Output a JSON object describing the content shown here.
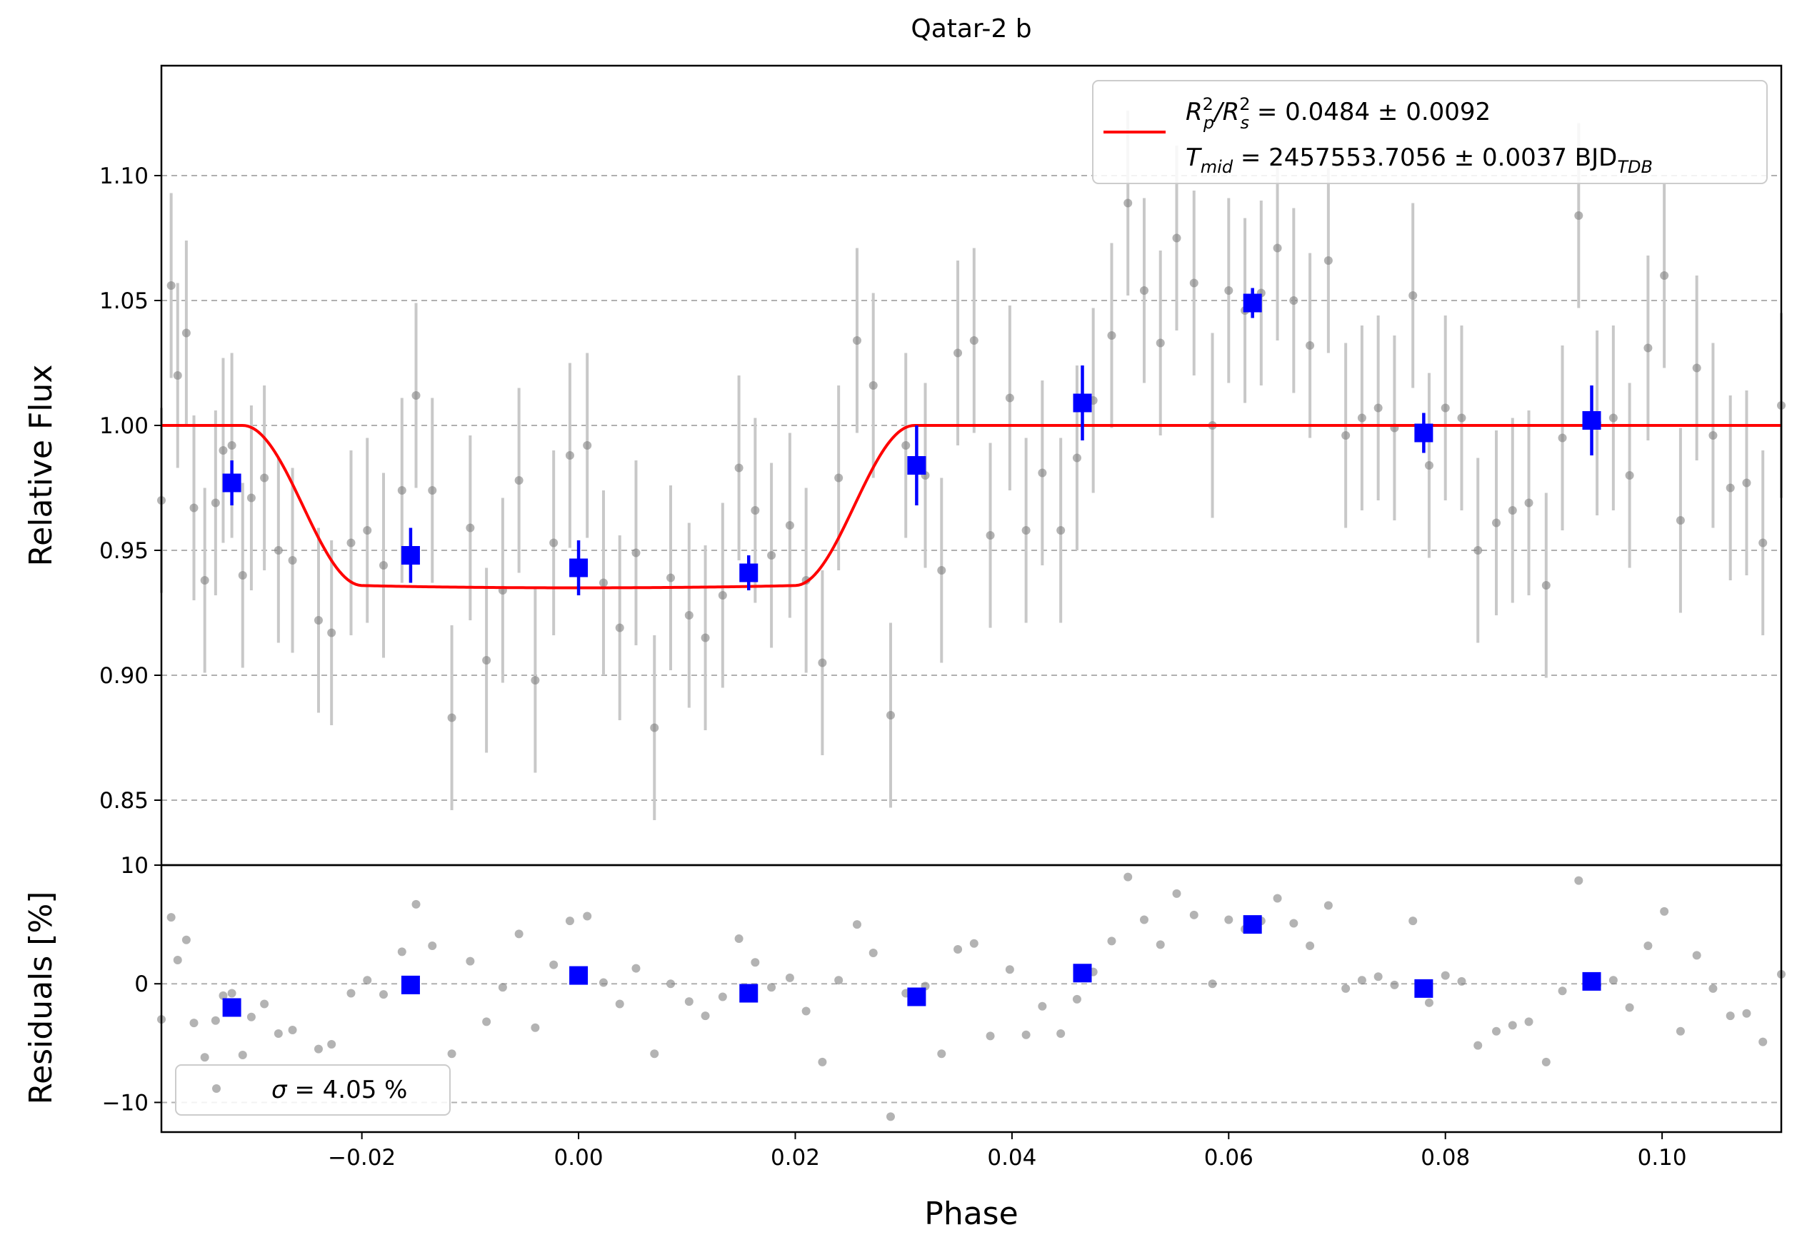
{
  "chart_data": [
    {
      "panel": "top",
      "type": "scatter",
      "title": "Qatar-2 b",
      "ylabel": "Relative Flux",
      "xlim": [
        -0.0385,
        0.111
      ],
      "ylim": [
        0.824,
        1.144
      ],
      "grid": "y-dashed",
      "legend_position": "top-right",
      "yticks": [
        "0.85",
        "0.90",
        "0.95",
        "1.00",
        "1.05",
        "1.10"
      ],
      "series": [
        {
          "name_parts": {
            "rp": "R",
            "rp_sup": "2",
            "rp_sub": "p",
            "rs": "R",
            "rs_sup": "2",
            "rs_sub": "s",
            "value": " = 0.0484 ± 0.0092"
          },
          "kind": "model-line",
          "color": "#ff0000",
          "params": {
            "rp_rs": 0.22,
            "t_ingress_start": -0.031,
            "t_ingress_end": -0.02,
            "t_egress_start": 0.02,
            "t_egress_end": 0.031,
            "baseline": 1.0,
            "bottom": 0.935
          }
        },
        {
          "name_parts": {
            "t": "T",
            "t_sub": "mid",
            "value": " = 2457553.7056 ± 0.0037 BJD",
            "bjd_sub": "TDB"
          },
          "kind": "legend-only"
        },
        {
          "kind": "raw-points",
          "color": "#808080",
          "error": 0.037,
          "points": [
            [
              -0.0385,
              0.97
            ],
            [
              -0.0376,
              1.056
            ],
            [
              -0.037,
              1.02
            ],
            [
              -0.0362,
              1.037
            ],
            [
              -0.0355,
              0.967
            ],
            [
              -0.0345,
              0.938
            ],
            [
              -0.0335,
              0.969
            ],
            [
              -0.0328,
              0.99
            ],
            [
              -0.032,
              0.992
            ],
            [
              -0.031,
              0.94
            ],
            [
              -0.0302,
              0.971
            ],
            [
              -0.029,
              0.979
            ],
            [
              -0.0277,
              0.95
            ],
            [
              -0.0264,
              0.946
            ],
            [
              -0.024,
              0.922
            ],
            [
              -0.0228,
              0.917
            ],
            [
              -0.021,
              0.953
            ],
            [
              -0.0195,
              0.958
            ],
            [
              -0.018,
              0.944
            ],
            [
              -0.0163,
              0.974
            ],
            [
              -0.015,
              1.012
            ],
            [
              -0.0135,
              0.974
            ],
            [
              -0.0117,
              0.883
            ],
            [
              -0.01,
              0.959
            ],
            [
              -0.0085,
              0.906
            ],
            [
              -0.007,
              0.934
            ],
            [
              -0.0055,
              0.978
            ],
            [
              -0.004,
              0.898
            ],
            [
              -0.0023,
              0.953
            ],
            [
              -0.0008,
              0.988
            ],
            [
              0.0008,
              0.992
            ],
            [
              0.0023,
              0.937
            ],
            [
              0.0038,
              0.919
            ],
            [
              0.0053,
              0.949
            ],
            [
              0.007,
              0.879
            ],
            [
              0.0085,
              0.939
            ],
            [
              0.0102,
              0.924
            ],
            [
              0.0117,
              0.915
            ],
            [
              0.0133,
              0.932
            ],
            [
              0.0148,
              0.983
            ],
            [
              0.0163,
              0.966
            ],
            [
              0.0178,
              0.948
            ],
            [
              0.0195,
              0.96
            ],
            [
              0.021,
              0.938
            ],
            [
              0.0225,
              0.905
            ],
            [
              0.024,
              0.979
            ],
            [
              0.0257,
              1.034
            ],
            [
              0.0272,
              1.016
            ],
            [
              0.0288,
              0.884
            ],
            [
              0.0302,
              0.992
            ],
            [
              0.032,
              0.98
            ],
            [
              0.0335,
              0.942
            ],
            [
              0.035,
              1.029
            ],
            [
              0.0365,
              1.034
            ],
            [
              0.038,
              0.956
            ],
            [
              0.0398,
              1.011
            ],
            [
              0.0413,
              0.958
            ],
            [
              0.0428,
              0.981
            ],
            [
              0.0445,
              0.958
            ],
            [
              0.046,
              0.987
            ],
            [
              0.0475,
              1.01
            ],
            [
              0.0492,
              1.036
            ],
            [
              0.0507,
              1.089
            ],
            [
              0.0522,
              1.054
            ],
            [
              0.0537,
              1.033
            ],
            [
              0.0552,
              1.075
            ],
            [
              0.0568,
              1.057
            ],
            [
              0.0585,
              1.0
            ],
            [
              0.06,
              1.054
            ],
            [
              0.0615,
              1.046
            ],
            [
              0.063,
              1.053
            ],
            [
              0.0645,
              1.071
            ],
            [
              0.066,
              1.05
            ],
            [
              0.0675,
              1.032
            ],
            [
              0.0692,
              1.066
            ],
            [
              0.0708,
              0.996
            ],
            [
              0.0723,
              1.003
            ],
            [
              0.0738,
              1.007
            ],
            [
              0.0753,
              0.999
            ],
            [
              0.077,
              1.052
            ],
            [
              0.0785,
              0.984
            ],
            [
              0.08,
              1.007
            ],
            [
              0.0815,
              1.003
            ],
            [
              0.083,
              0.95
            ],
            [
              0.0847,
              0.961
            ],
            [
              0.0862,
              0.966
            ],
            [
              0.0877,
              0.969
            ],
            [
              0.0893,
              0.936
            ],
            [
              0.0908,
              0.995
            ],
            [
              0.0923,
              1.084
            ],
            [
              0.094,
              1.001
            ],
            [
              0.0955,
              1.003
            ],
            [
              0.097,
              0.98
            ],
            [
              0.0987,
              1.031
            ],
            [
              0.1002,
              1.06
            ],
            [
              0.1017,
              0.962
            ],
            [
              0.1032,
              1.023
            ],
            [
              0.1047,
              0.996
            ],
            [
              0.1063,
              0.975
            ],
            [
              0.1078,
              0.977
            ],
            [
              0.1093,
              0.953
            ],
            [
              0.111,
              1.008
            ]
          ]
        },
        {
          "kind": "binned-points",
          "color": "#0000ff",
          "points": [
            [
              -0.032,
              0.977,
              0.009
            ],
            [
              -0.0155,
              0.948,
              0.011
            ],
            [
              0.0,
              0.943,
              0.011
            ],
            [
              0.0157,
              0.941,
              0.007
            ],
            [
              0.0312,
              0.984,
              0.016
            ],
            [
              0.0465,
              1.009,
              0.015
            ],
            [
              0.0622,
              1.049,
              0.006
            ],
            [
              0.078,
              0.997,
              0.008
            ],
            [
              0.0935,
              1.002,
              0.014
            ]
          ]
        }
      ]
    },
    {
      "panel": "bottom",
      "type": "scatter",
      "xlabel": "Phase",
      "ylabel": "Residuals [%]",
      "xlim": [
        -0.0385,
        0.111
      ],
      "ylim": [
        -12.5,
        10
      ],
      "grid": "y-dashed",
      "legend_position": "lower-left",
      "legend": {
        "sigma": "σ",
        "value": " = 4.05 %"
      },
      "yticks": [
        "10",
        "0",
        "−10"
      ],
      "xticks": [
        "−0.02",
        "0.00",
        "0.02",
        "0.04",
        "0.06",
        "0.08",
        "0.10"
      ],
      "xtick_values": [
        -0.02,
        0.0,
        0.02,
        0.04,
        0.06,
        0.08,
        0.1
      ],
      "series": [
        {
          "kind": "raw-residuals",
          "color": "#808080",
          "points": [
            [
              -0.0385,
              -3.0
            ],
            [
              -0.0376,
              5.6
            ],
            [
              -0.037,
              2.0
            ],
            [
              -0.0362,
              3.7
            ],
            [
              -0.0355,
              -3.3
            ],
            [
              -0.0345,
              -6.2
            ],
            [
              -0.0335,
              -3.1
            ],
            [
              -0.0328,
              -1.0
            ],
            [
              -0.032,
              -0.8
            ],
            [
              -0.031,
              -6.0
            ],
            [
              -0.0302,
              -2.8
            ],
            [
              -0.029,
              -1.7
            ],
            [
              -0.0277,
              -4.2
            ],
            [
              -0.0264,
              -3.9
            ],
            [
              -0.024,
              -5.5
            ],
            [
              -0.0228,
              -5.1
            ],
            [
              -0.021,
              -0.8
            ],
            [
              -0.0195,
              0.3
            ],
            [
              -0.018,
              -0.9
            ],
            [
              -0.0163,
              2.7
            ],
            [
              -0.015,
              6.7
            ],
            [
              -0.0135,
              3.2
            ],
            [
              -0.0117,
              -5.9
            ],
            [
              -0.01,
              1.9
            ],
            [
              -0.0085,
              -3.2
            ],
            [
              -0.007,
              -0.3
            ],
            [
              -0.0055,
              4.2
            ],
            [
              -0.004,
              -3.7
            ],
            [
              -0.0023,
              1.6
            ],
            [
              -0.0008,
              5.3
            ],
            [
              0.0008,
              5.7
            ],
            [
              0.0023,
              0.1
            ],
            [
              0.0038,
              -1.7
            ],
            [
              0.0053,
              1.3
            ],
            [
              0.007,
              -5.9
            ],
            [
              0.0085,
              0.0
            ],
            [
              0.0102,
              -1.5
            ],
            [
              0.0117,
              -2.7
            ],
            [
              0.0133,
              -1.1
            ],
            [
              0.0148,
              3.8
            ],
            [
              0.0163,
              1.8
            ],
            [
              0.0178,
              -0.3
            ],
            [
              0.0195,
              0.5
            ],
            [
              0.021,
              -2.3
            ],
            [
              0.0225,
              -6.6
            ],
            [
              0.024,
              0.3
            ],
            [
              0.0257,
              5.0
            ],
            [
              0.0272,
              2.6
            ],
            [
              0.0288,
              -11.2
            ],
            [
              0.0302,
              -0.8
            ],
            [
              0.032,
              -0.2
            ],
            [
              0.0335,
              -5.9
            ],
            [
              0.035,
              2.9
            ],
            [
              0.0365,
              3.4
            ],
            [
              0.038,
              -4.4
            ],
            [
              0.0398,
              1.2
            ],
            [
              0.0413,
              -4.3
            ],
            [
              0.0428,
              -1.9
            ],
            [
              0.0445,
              -4.2
            ],
            [
              0.046,
              -1.3
            ],
            [
              0.0475,
              1.0
            ],
            [
              0.0492,
              3.6
            ],
            [
              0.0507,
              9.0
            ],
            [
              0.0522,
              5.4
            ],
            [
              0.0537,
              3.3
            ],
            [
              0.0552,
              7.6
            ],
            [
              0.0568,
              5.8
            ],
            [
              0.0585,
              0.0
            ],
            [
              0.06,
              5.4
            ],
            [
              0.0615,
              4.6
            ],
            [
              0.063,
              5.3
            ],
            [
              0.0645,
              7.2
            ],
            [
              0.066,
              5.1
            ],
            [
              0.0675,
              3.2
            ],
            [
              0.0692,
              6.6
            ],
            [
              0.0708,
              -0.4
            ],
            [
              0.0723,
              0.3
            ],
            [
              0.0738,
              0.6
            ],
            [
              0.0753,
              -0.1
            ],
            [
              0.077,
              5.3
            ],
            [
              0.0785,
              -1.6
            ],
            [
              0.08,
              0.7
            ],
            [
              0.0815,
              0.2
            ],
            [
              0.083,
              -5.2
            ],
            [
              0.0847,
              -4.0
            ],
            [
              0.0862,
              -3.5
            ],
            [
              0.0877,
              -3.2
            ],
            [
              0.0893,
              -6.6
            ],
            [
              0.0908,
              -0.6
            ],
            [
              0.0923,
              8.7
            ],
            [
              0.094,
              -0.1
            ],
            [
              0.0955,
              0.3
            ],
            [
              0.097,
              -2.0
            ],
            [
              0.0987,
              3.2
            ],
            [
              0.1002,
              6.1
            ],
            [
              0.1017,
              -4.0
            ],
            [
              0.1032,
              2.4
            ],
            [
              0.1047,
              -0.4
            ],
            [
              0.1063,
              -2.7
            ],
            [
              0.1078,
              -2.5
            ],
            [
              0.1093,
              -4.9
            ],
            [
              0.111,
              0.8
            ]
          ]
        },
        {
          "kind": "binned-residuals",
          "color": "#0000ff",
          "points": [
            [
              -0.032,
              -2.0
            ],
            [
              -0.0155,
              -0.1
            ],
            [
              0.0,
              0.7
            ],
            [
              0.0157,
              -0.8
            ],
            [
              0.0312,
              -1.1
            ],
            [
              0.0465,
              0.9
            ],
            [
              0.0622,
              5.0
            ],
            [
              0.078,
              -0.4
            ],
            [
              0.0935,
              0.2
            ]
          ]
        }
      ]
    }
  ]
}
